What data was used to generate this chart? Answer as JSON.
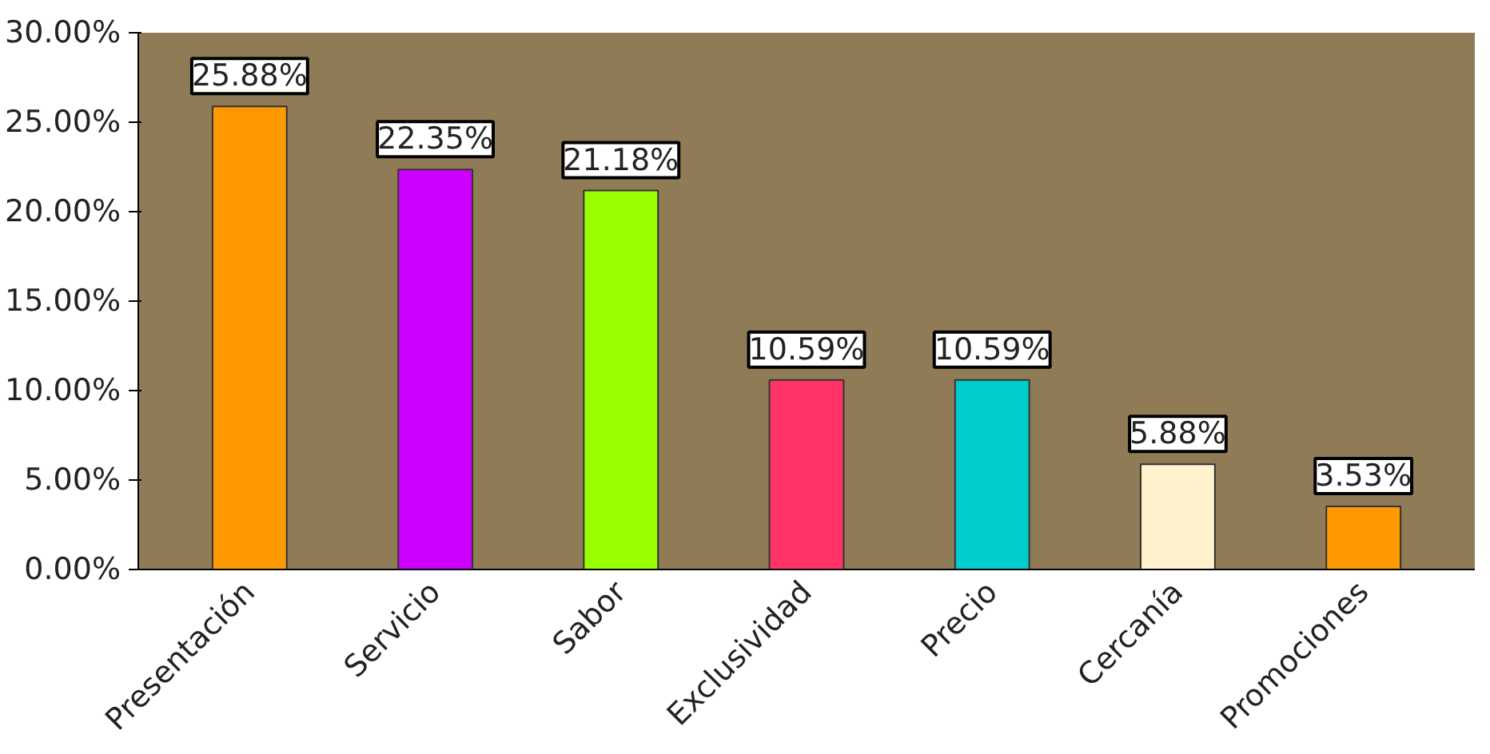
{
  "chart_data": {
    "type": "bar",
    "categories": [
      "Presentación",
      "Servicio",
      "Sabor",
      "Exclusividad",
      "Precio",
      "Cercanía",
      "Promociones"
    ],
    "values": [
      25.88,
      22.35,
      21.18,
      10.59,
      10.59,
      5.88,
      3.53
    ],
    "colors": [
      "#ff9900",
      "#cc00ff",
      "#99ff00",
      "#ff3366",
      "#00cccc",
      "#fff2cc",
      "#ff9900"
    ],
    "value_labels": [
      "25.88%",
      "22.35%",
      "21.18%",
      "10.59%",
      "10.59%",
      "5.88%",
      "3.53%"
    ],
    "ylim": [
      0,
      30
    ],
    "yticks": [
      {
        "value": 0,
        "label": "0.00%"
      },
      {
        "value": 5,
        "label": "5.00%"
      },
      {
        "value": 10,
        "label": "10.00%"
      },
      {
        "value": 15,
        "label": "15.00%"
      },
      {
        "value": 20,
        "label": "20.00%"
      },
      {
        "value": 25,
        "label": "25.00%"
      },
      {
        "value": 30,
        "label": "30.00%"
      }
    ],
    "grid": false
  }
}
